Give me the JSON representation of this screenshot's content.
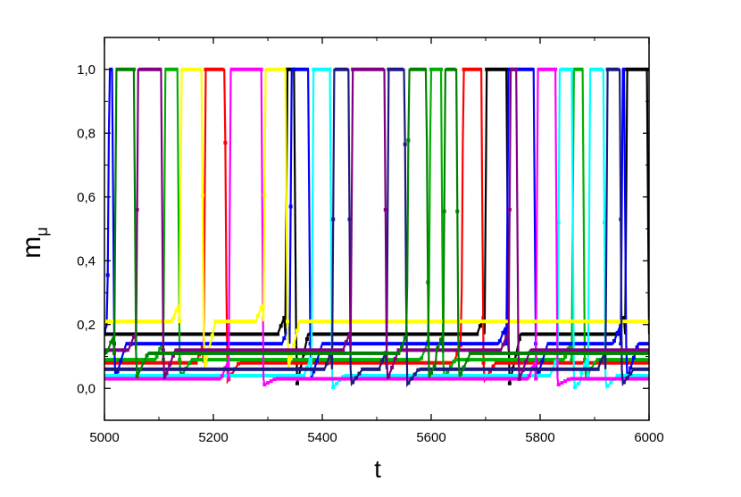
{
  "chart_data": {
    "type": "line",
    "title": "",
    "xlabel": "t",
    "ylabel": "m",
    "ylabel_subscript": "μ",
    "xlim": [
      5000,
      6000
    ],
    "ylim": [
      -0.1,
      1.1
    ],
    "grid": false,
    "x_ticks": [
      5000,
      5200,
      5400,
      5600,
      5800,
      6000
    ],
    "x_tick_labels": [
      "5000",
      "5200",
      "5400",
      "5600",
      "5800",
      "6000"
    ],
    "y_ticks": [
      0.0,
      0.2,
      0.4,
      0.6,
      0.8,
      1.0
    ],
    "y_tick_labels": [
      "0,0",
      "0,2",
      "0,4",
      "0,6",
      "0,8",
      "1,0"
    ],
    "series": [
      {
        "color": "#000000",
        "marker": "square",
        "baseline": 0.17,
        "low": 0.0,
        "active": [
          [
            5332,
            5352
          ],
          [
            5698,
            5742
          ],
          [
            5956,
            6000
          ]
        ],
        "x": [
          5000,
          5200,
          5332,
          5352,
          5400,
          5600,
          5698,
          5742,
          5956,
          6000
        ],
        "y": [
          0.17,
          0.17,
          0.2,
          1.0,
          0.03,
          0.17,
          0.2,
          1.0,
          0.02,
          0.18
        ]
      },
      {
        "color": "#ff0000",
        "marker": "circle",
        "baseline": 0.08,
        "low": 0.02,
        "active": [
          [
            5182,
            5225
          ],
          [
            5655,
            5696
          ]
        ]
      },
      {
        "color": "#00b000",
        "marker": "triangle",
        "baseline": 0.09,
        "low": 0.03,
        "active": [
          [
            5108,
            5138
          ],
          [
            5595,
            5622
          ],
          [
            5858,
            5882
          ]
        ]
      },
      {
        "color": "#0000ff",
        "marker": "triangle-down",
        "baseline": 0.14,
        "low": 0.02,
        "active": [
          [
            5005,
            5018
          ],
          [
            5340,
            5378
          ],
          [
            5738,
            5792
          ],
          [
            5948,
            5958
          ]
        ]
      },
      {
        "color": "#00ffff",
        "marker": "diamond",
        "baseline": 0.04,
        "low": 0.0,
        "active": [
          [
            5380,
            5418
          ],
          [
            5832,
            5862
          ],
          [
            5888,
            5920
          ]
        ]
      },
      {
        "color": "#ff00ff",
        "marker": "triangle-left",
        "baseline": 0.03,
        "low": 0.01,
        "active": [
          [
            5228,
            5292
          ],
          [
            5792,
            5832
          ]
        ]
      },
      {
        "color": "#ffff00",
        "marker": "triangle-right",
        "baseline": 0.21,
        "low": 0.05,
        "active": [
          [
            5138,
            5182
          ],
          [
            5292,
            5336
          ]
        ]
      },
      {
        "color": "#1a1a80",
        "marker": "hexagon",
        "baseline": 0.06,
        "low": 0.01,
        "active": [
          [
            5418,
            5452
          ],
          [
            5518,
            5555
          ],
          [
            5920,
            5950
          ]
        ]
      },
      {
        "color": "#800080",
        "marker": "star",
        "baseline": 0.12,
        "low": 0.02,
        "active": [
          [
            5058,
            5108
          ],
          [
            5452,
            5518
          ],
          [
            5742,
            5760
          ]
        ]
      },
      {
        "color": "#008000",
        "marker": "pentagon",
        "baseline": 0.11,
        "low": 0.03,
        "active": [
          [
            5018,
            5058
          ],
          [
            5555,
            5595
          ],
          [
            5622,
            5650
          ]
        ]
      }
    ]
  }
}
